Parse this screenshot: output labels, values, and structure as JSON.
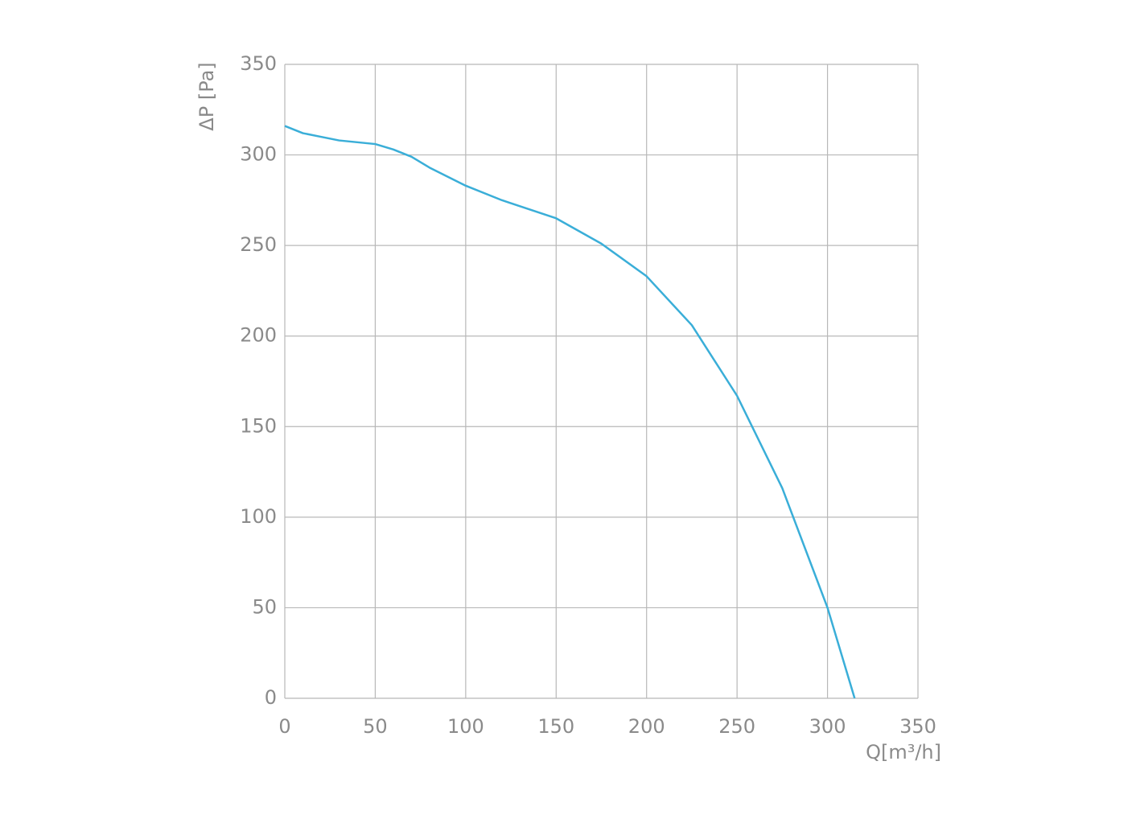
{
  "chart_data": {
    "type": "line",
    "x_label": "Q[m³/h]",
    "y_label": "ΔP [Pa]",
    "x": [
      0,
      10,
      20,
      30,
      50,
      60,
      70,
      80,
      100,
      120,
      150,
      175,
      200,
      225,
      250,
      275,
      300,
      315
    ],
    "series": [
      {
        "name": null,
        "color": "#3aaed8",
        "values": [
          316,
          312,
          310,
          308,
          306,
          303,
          299,
          293,
          283,
          275,
          265,
          251,
          233,
          206,
          167,
          116,
          50,
          0
        ]
      }
    ],
    "xlim": [
      0,
      350
    ],
    "xticks": [
      0,
      50,
      100,
      150,
      200,
      250,
      300,
      350
    ],
    "ylim": [
      0,
      350
    ],
    "yticks": [
      0,
      50,
      100,
      150,
      200,
      250,
      300,
      350
    ],
    "grid": true
  }
}
